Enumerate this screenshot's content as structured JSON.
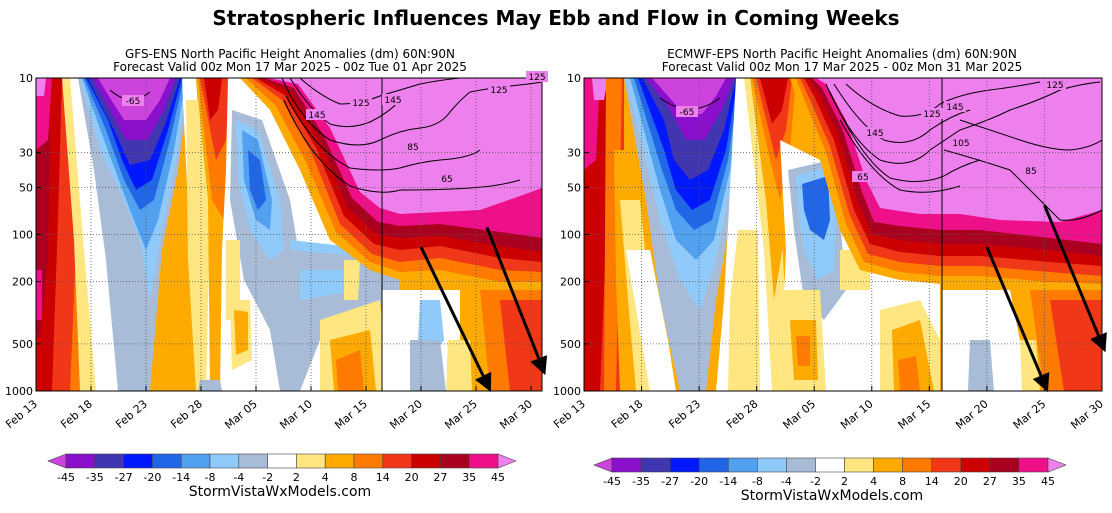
{
  "main_title": "Stratospheric Influences May Ebb and Flow in Coming Weeks",
  "colorbar": {
    "levels": [
      "-45",
      "-35",
      "-27",
      "-20",
      "-14",
      "-8",
      "-4",
      "-2",
      "2",
      "4",
      "8",
      "14",
      "20",
      "27",
      "35",
      "45"
    ],
    "colors": [
      "#cc44dd",
      "#8a10cc",
      "#4036b0",
      "#0018ff",
      "#2266e8",
      "#52a0f0",
      "#90cafa",
      "#a8bcd8",
      "#ffffff",
      "#ffe680",
      "#ffaa00",
      "#ff7a00",
      "#f03818",
      "#cc0000",
      "#aa0020",
      "#ee1088",
      "#ee80ee"
    ]
  },
  "panels": [
    {
      "title_line1": "GFS-ENS North Pacific Height Anomalies (dm) 60N:90N",
      "title_line2": "Forecast Valid 00z Mon 17 Mar 2025 - 00z Tue 01 Apr 2025",
      "footer": "StormVistaWxModels.com",
      "contour_labels": [
        "-65",
        "145",
        "125",
        "145",
        "85",
        "65",
        "125",
        "125"
      ]
    },
    {
      "title_line1": "ECMWF-EPS North Pacific Height Anomalies (dm) 60N:90N",
      "title_line2": "Forecast Valid 00z Mon 17 Mar 2025 - 00z Mon 31 Mar 2025",
      "footer": "StormVistaWxModels.com",
      "contour_labels": [
        "-65",
        "145",
        "125",
        "105",
        "145",
        "85",
        "65",
        "125"
      ]
    }
  ],
  "chart_data": [
    {
      "type": "heatmap",
      "title": "GFS-ENS North Pacific Height Anomalies (dm) 60N:90N",
      "subtitle": "Forecast Valid 00z Mon 17 Mar 2025 - 00z Tue 01 Apr 2025",
      "x_ticks": [
        "Feb 13",
        "Feb 18",
        "Feb 23",
        "Feb 28",
        "Mar 05",
        "Mar 10",
        "Mar 15",
        "Mar 20",
        "Mar 25",
        "Mar 30"
      ],
      "y_ticks": [
        "10",
        "30",
        "50",
        "100",
        "200",
        "500",
        "1000"
      ],
      "y_scale": "log",
      "ylim": [
        1000,
        10
      ],
      "xlim": [
        "Feb 13",
        "Mar 31"
      ],
      "forecast_start": "Mar 17",
      "grid": true,
      "arrows": [
        {
          "from": [
            "Mar 20",
            120
          ],
          "to": [
            "Mar 26",
            900
          ]
        },
        {
          "from": [
            "Mar 26",
            90
          ],
          "to": [
            "Mar 31",
            700
          ]
        }
      ]
    },
    {
      "type": "heatmap",
      "title": "ECMWF-EPS North Pacific Height Anomalies (dm) 60N:90N",
      "subtitle": "Forecast Valid 00z Mon 17 Mar 2025 - 00z Mon 31 Mar 2025",
      "x_ticks": [
        "Feb 13",
        "Feb 18",
        "Feb 23",
        "Feb 28",
        "Mar 05",
        "Mar 10",
        "Mar 15",
        "Mar 20",
        "Mar 25",
        "Mar 30"
      ],
      "y_ticks": [
        "10",
        "30",
        "50",
        "100",
        "200",
        "500",
        "1000"
      ],
      "y_scale": "log",
      "ylim": [
        1000,
        10
      ],
      "xlim": [
        "Feb 13",
        "Mar 30"
      ],
      "forecast_start": "Mar 17",
      "grid": true,
      "arrows": [
        {
          "from": [
            "Mar 20",
            120
          ],
          "to": [
            "Mar 25",
            900
          ]
        },
        {
          "from": [
            "Mar 25",
            65
          ],
          "to": [
            "Mar 30",
            500
          ]
        }
      ]
    }
  ]
}
